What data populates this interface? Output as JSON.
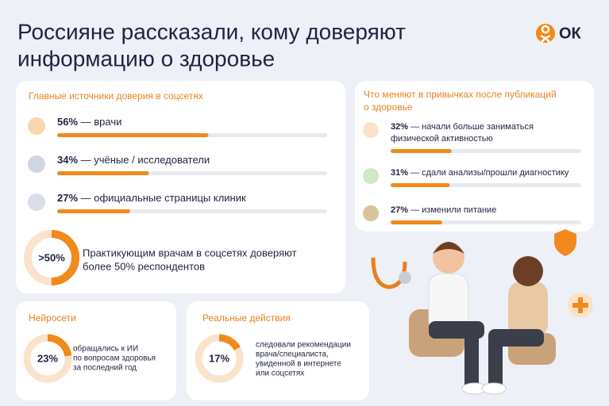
{
  "header": {
    "title_line1": "Россияне рассказали, кому доверяют",
    "title_line2": "информацию о здоровье",
    "logo": "ОК"
  },
  "trust": {
    "heading": "Главные источники доверия в соцсетях",
    "items": [
      {
        "value": 56,
        "value_label": "56%",
        "text": " — врачи"
      },
      {
        "value": 34,
        "value_label": "34%",
        "text": " — учёные / исследователи"
      },
      {
        "value": 27,
        "value_label": "27%",
        "text": " — официальные страницы клиник"
      }
    ],
    "donut": {
      "value": 50,
      "value_label": ">50%",
      "text_lines": [
        "Практикующим врачам в соцсетях доверяют",
        "более 50% респондентов"
      ]
    }
  },
  "habits": {
    "heading_lines": [
      "Что меняют в привычках после публикаций",
      "о здоровье"
    ],
    "items": [
      {
        "value": 32,
        "value_label": "32%",
        "text_lines": [
          " — начали больше заниматься",
          "физической активностью"
        ]
      },
      {
        "value": 31,
        "value_label": "31%",
        "text_lines": [
          " — сдали анализы/прошли диагностику"
        ]
      },
      {
        "value": 27,
        "value_label": "27%",
        "text_lines": [
          " — изменили питание"
        ]
      }
    ]
  },
  "ai": {
    "heading": "Нейросети",
    "value": 23,
    "value_label": "23%",
    "text_lines": [
      "обращались к ИИ",
      "по вопросам здоровья",
      "за последний год"
    ]
  },
  "actions": {
    "heading": "Реальные действия",
    "value": 17,
    "value_label": "17%",
    "text_lines": [
      "следовали рекомендации",
      "врача/специалиста,",
      "увиденной в интернете",
      "или соцсетях"
    ]
  }
}
